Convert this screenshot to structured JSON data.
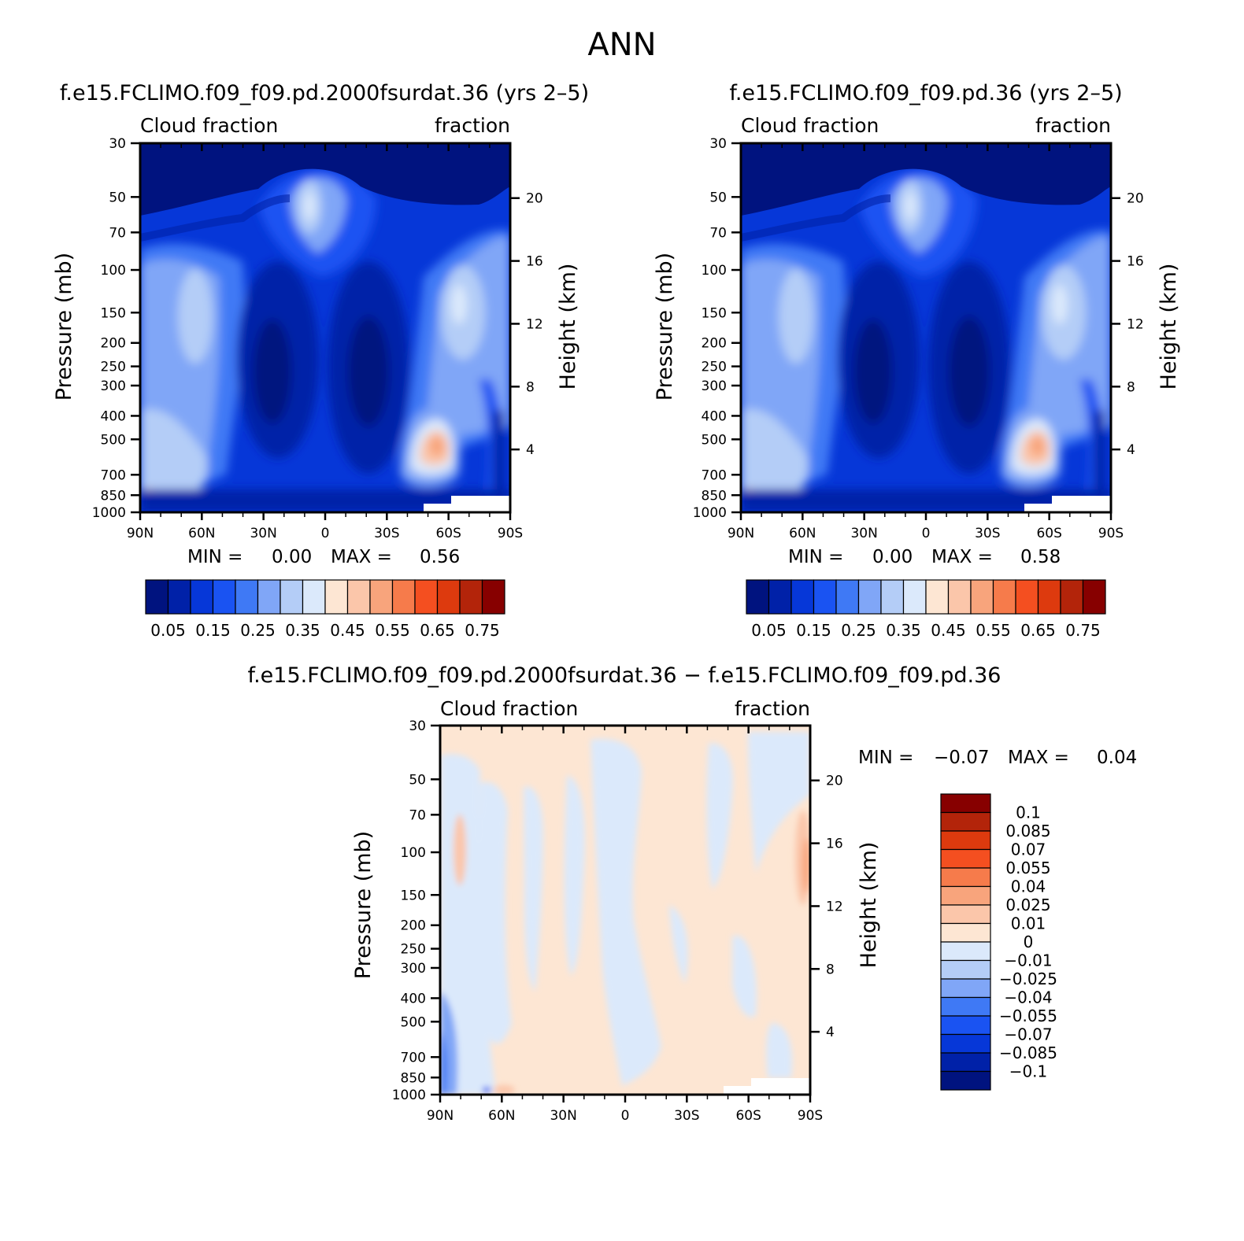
{
  "figure_title": "ANN",
  "chart_data": [
    {
      "type": "heatmap",
      "panel": "left",
      "title": "f.e15.FCLIMO.f09_f09.pd.2000fsurdat.36 (yrs 2–5)",
      "left_subtitle": "Cloud fraction",
      "right_subtitle": "fraction",
      "xlabel": "",
      "ylabel": "Pressure (mb)",
      "y2label": "Height (km)",
      "x_ticks": [
        "90N",
        "60N",
        "30N",
        "0",
        "30S",
        "60S",
        "90S"
      ],
      "y_ticks": [
        "30",
        "50",
        "70",
        "100",
        "150",
        "200",
        "250",
        "300",
        "400",
        "500",
        "700",
        "850",
        "1000"
      ],
      "y2_ticks": [
        "20",
        "16",
        "12",
        "8",
        "4"
      ],
      "min_label": "MIN =",
      "min_value": "0.00",
      "max_label": "MAX =",
      "max_value": "0.56",
      "colorbar_labels": [
        "0.05",
        "0.15",
        "0.25",
        "0.35",
        "0.45",
        "0.55",
        "0.65",
        "0.75"
      ],
      "levels": [
        0.05,
        0.1,
        0.15,
        0.2,
        0.25,
        0.3,
        0.35,
        0.4,
        0.45,
        0.5,
        0.55,
        0.6,
        0.65,
        0.7,
        0.75
      ]
    },
    {
      "type": "heatmap",
      "panel": "right",
      "title": "f.e15.FCLIMO.f09_f09.pd.36 (yrs 2–5)",
      "left_subtitle": "Cloud fraction",
      "right_subtitle": "fraction",
      "xlabel": "",
      "ylabel": "Pressure (mb)",
      "y2label": "Height (km)",
      "x_ticks": [
        "90N",
        "60N",
        "30N",
        "0",
        "30S",
        "60S",
        "90S"
      ],
      "y_ticks": [
        "30",
        "50",
        "70",
        "100",
        "150",
        "200",
        "250",
        "300",
        "400",
        "500",
        "700",
        "850",
        "1000"
      ],
      "y2_ticks": [
        "20",
        "16",
        "12",
        "8",
        "4"
      ],
      "min_label": "MIN =",
      "min_value": "0.00",
      "max_label": "MAX =",
      "max_value": "0.58",
      "colorbar_labels": [
        "0.05",
        "0.15",
        "0.25",
        "0.35",
        "0.45",
        "0.55",
        "0.65",
        "0.75"
      ],
      "levels": [
        0.05,
        0.1,
        0.15,
        0.2,
        0.25,
        0.3,
        0.35,
        0.4,
        0.45,
        0.5,
        0.55,
        0.6,
        0.65,
        0.7,
        0.75
      ]
    },
    {
      "type": "heatmap",
      "panel": "difference",
      "title": "f.e15.FCLIMO.f09_f09.pd.2000fsurdat.36 − f.e15.FCLIMO.f09_f09.pd.36",
      "left_subtitle": "Cloud fraction",
      "right_subtitle": "fraction",
      "xlabel": "",
      "ylabel": "Pressure (mb)",
      "y2label": "Height (km)",
      "x_ticks": [
        "90N",
        "60N",
        "30N",
        "0",
        "30S",
        "60S",
        "90S"
      ],
      "y_ticks": [
        "30",
        "50",
        "70",
        "100",
        "150",
        "200",
        "250",
        "300",
        "400",
        "500",
        "700",
        "850",
        "1000"
      ],
      "y2_ticks": [
        "20",
        "16",
        "12",
        "8",
        "4"
      ],
      "min_label": "MIN =",
      "min_value": "−0.07",
      "max_label": "MAX =",
      "max_value": "0.04",
      "colorbar_labels": [
        "0.1",
        "0.085",
        "0.07",
        "0.055",
        "0.04",
        "0.025",
        "0.01",
        "0",
        "−0.01",
        "−0.025",
        "−0.04",
        "−0.055",
        "−0.07",
        "−0.085",
        "−0.1"
      ]
    }
  ],
  "colormap_abs": [
    "#00137f",
    "#0021a8",
    "#0637d8",
    "#1a53f2",
    "#3f79f5",
    "#80a6f7",
    "#b4cdf7",
    "#dbe9fb",
    "#fde6d3",
    "#fbc6aa",
    "#f8a47c",
    "#f67b4b",
    "#f44f20",
    "#dd3a0e",
    "#b3240a",
    "#870000"
  ],
  "colormap_diff": [
    "#870000",
    "#b3240a",
    "#dd3a0e",
    "#f44f20",
    "#f67b4b",
    "#f8a47c",
    "#fbc6aa",
    "#fde6d3",
    "#dbe9fb",
    "#b4cdf7",
    "#80a6f7",
    "#3f79f5",
    "#1a53f2",
    "#0637d8",
    "#0021a8",
    "#00137f"
  ]
}
